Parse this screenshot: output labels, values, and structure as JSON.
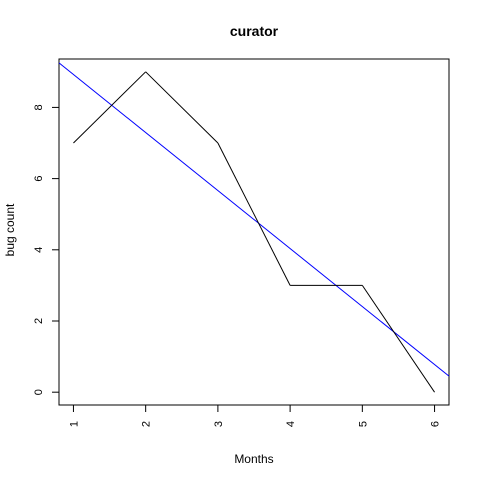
{
  "chart_data": {
    "type": "line",
    "title": "curator",
    "xlabel": "Months",
    "ylabel": "bug count",
    "x": [
      1,
      2,
      3,
      4,
      5,
      6
    ],
    "xlim": [
      0.8,
      6.2
    ],
    "ylim": [
      -0.36,
      9.36
    ],
    "xticks": [
      1,
      2,
      3,
      4,
      5,
      6
    ],
    "yticks": [
      0,
      2,
      4,
      6,
      8
    ],
    "grid": false,
    "series": [
      {
        "values": [
          7,
          9,
          7,
          3,
          3,
          0
        ],
        "color": "#000000"
      }
    ],
    "trend_line": {
      "x": [
        0.8,
        6.2
      ],
      "y": [
        9.25,
        0.45
      ],
      "color": "#0000ff"
    }
  }
}
